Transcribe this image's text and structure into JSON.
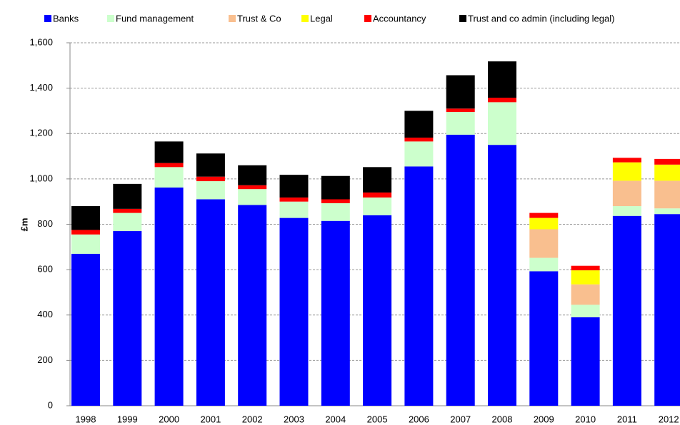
{
  "chart_data": {
    "type": "stacked_bar",
    "y_label": "£m",
    "categories": [
      "1998",
      "1999",
      "2000",
      "2001",
      "2002",
      "2003",
      "2004",
      "2005",
      "2006",
      "2007",
      "2008",
      "2009",
      "2010",
      "2011",
      "2012"
    ],
    "series": [
      {
        "name": "Banks",
        "color": "#0000ff",
        "values": [
          670,
          770,
          962,
          910,
          885,
          828,
          815,
          840,
          1055,
          1195,
          1150,
          593,
          390,
          837,
          845
        ]
      },
      {
        "name": "Fund management",
        "color": "#ccffcc",
        "values": [
          85,
          80,
          90,
          80,
          70,
          72,
          78,
          78,
          110,
          100,
          188,
          59,
          55,
          43,
          25
        ]
      },
      {
        "name": "Trust & Co",
        "color": "#f9bf8f",
        "values": [
          null,
          null,
          null,
          null,
          null,
          null,
          null,
          null,
          null,
          null,
          null,
          126,
          90,
          112,
          122
        ]
      },
      {
        "name": "Legal",
        "color": "#ffff00",
        "values": [
          null,
          null,
          null,
          null,
          null,
          null,
          null,
          null,
          null,
          null,
          null,
          50,
          62,
          81,
          71
        ]
      },
      {
        "name": "Accountancy",
        "color": "#ff0000",
        "values": [
          20,
          18,
          18,
          20,
          17,
          18,
          17,
          22,
          17,
          15,
          20,
          22,
          20,
          20,
          25
        ]
      },
      {
        "name": "Trust and co admin (including legal)",
        "color": "#000000",
        "values": [
          105,
          110,
          95,
          102,
          88,
          100,
          103,
          112,
          118,
          147,
          160,
          null,
          null,
          null,
          null
        ]
      }
    ],
    "ylim": [
      0,
      1600
    ],
    "yticks": [
      0,
      200,
      400,
      600,
      800,
      {
        "value": 1000,
        "label": "1,000"
      },
      {
        "value": 1200,
        "label": "1,200"
      },
      {
        "value": 1400,
        "label": "1,400"
      },
      {
        "value": 1600,
        "label": "1,600"
      }
    ],
    "grid": true
  }
}
